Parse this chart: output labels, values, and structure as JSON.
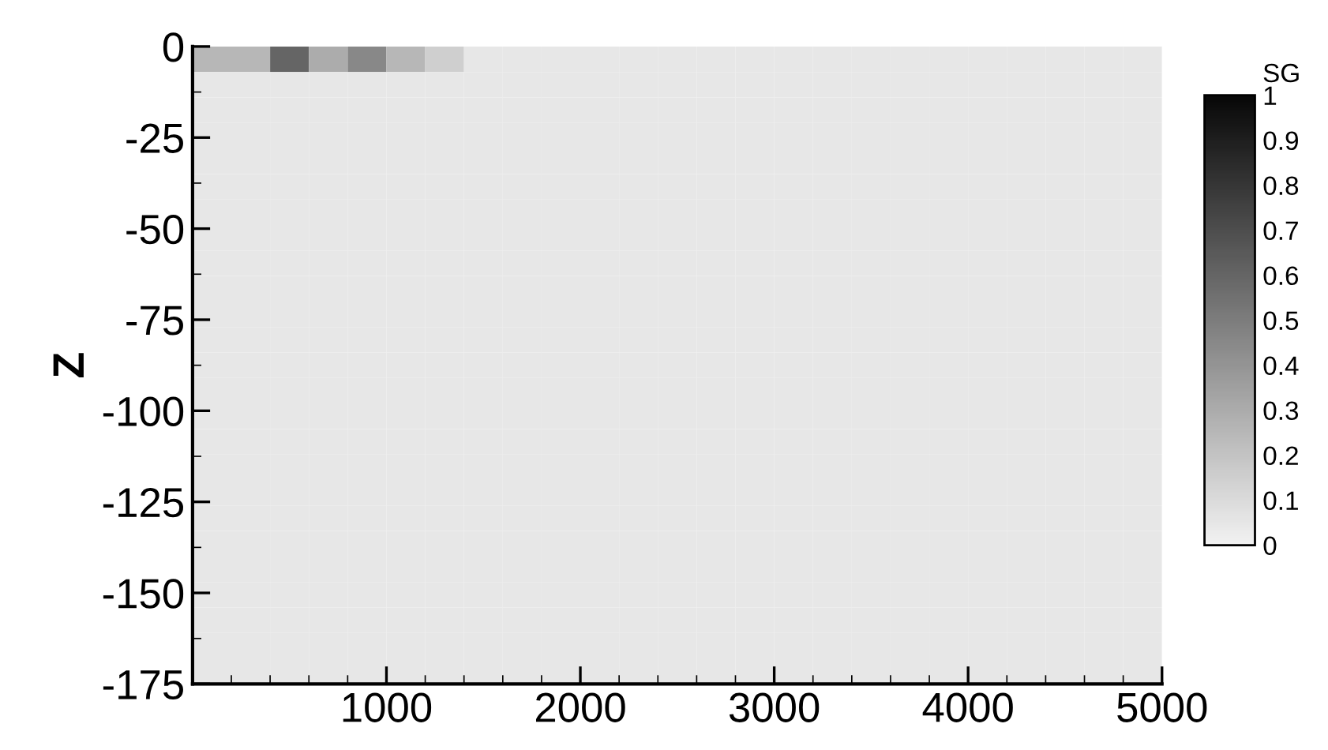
{
  "chart_data": {
    "type": "heatmap",
    "ylabel": "Z",
    "clabel": "SG",
    "cells": [
      [
        0.25,
        0.25,
        0.6,
        0.3,
        0.45,
        0.25,
        0.15,
        0.05,
        0.05,
        0.05,
        0.05,
        0.05,
        0.05,
        0.05,
        0.05,
        0.05,
        0.05,
        0.05,
        0.05,
        0.05,
        0.05,
        0.05,
        0.05,
        0.05,
        0.05
      ],
      [
        0.05,
        0.05,
        0.05,
        0.05,
        0.05,
        0.05,
        0.05,
        0.05,
        0.05,
        0.05,
        0.05,
        0.05,
        0.05,
        0.05,
        0.05,
        0.05,
        0.05,
        0.05,
        0.05,
        0.05,
        0.05,
        0.05,
        0.05,
        0.05,
        0.05
      ],
      [
        0.05,
        0.05,
        0.05,
        0.05,
        0.05,
        0.05,
        0.05,
        0.05,
        0.05,
        0.05,
        0.05,
        0.05,
        0.05,
        0.05,
        0.05,
        0.05,
        0.05,
        0.05,
        0.05,
        0.05,
        0.05,
        0.05,
        0.05,
        0.05,
        0.05
      ],
      [
        0.05,
        0.05,
        0.05,
        0.05,
        0.05,
        0.05,
        0.05,
        0.05,
        0.05,
        0.05,
        0.05,
        0.05,
        0.05,
        0.05,
        0.05,
        0.05,
        0.05,
        0.05,
        0.05,
        0.05,
        0.05,
        0.05,
        0.05,
        0.05,
        0.05
      ],
      [
        0.05,
        0.05,
        0.05,
        0.05,
        0.05,
        0.05,
        0.05,
        0.05,
        0.05,
        0.05,
        0.05,
        0.05,
        0.05,
        0.05,
        0.05,
        0.05,
        0.05,
        0.05,
        0.05,
        0.05,
        0.05,
        0.05,
        0.05,
        0.05,
        0.05
      ],
      [
        0.05,
        0.05,
        0.05,
        0.05,
        0.05,
        0.05,
        0.05,
        0.05,
        0.05,
        0.05,
        0.05,
        0.05,
        0.05,
        0.05,
        0.05,
        0.05,
        0.05,
        0.05,
        0.05,
        0.05,
        0.05,
        0.05,
        0.05,
        0.05,
        0.05
      ],
      [
        0.05,
        0.05,
        0.05,
        0.05,
        0.05,
        0.05,
        0.05,
        0.05,
        0.05,
        0.05,
        0.05,
        0.05,
        0.05,
        0.05,
        0.05,
        0.05,
        0.05,
        0.05,
        0.05,
        0.05,
        0.05,
        0.05,
        0.05,
        0.05,
        0.05
      ],
      [
        0.05,
        0.05,
        0.05,
        0.05,
        0.05,
        0.05,
        0.05,
        0.05,
        0.05,
        0.05,
        0.05,
        0.05,
        0.05,
        0.05,
        0.05,
        0.05,
        0.05,
        0.05,
        0.05,
        0.05,
        0.05,
        0.05,
        0.05,
        0.05,
        0.05
      ],
      [
        0.05,
        0.05,
        0.05,
        0.05,
        0.05,
        0.05,
        0.05,
        0.05,
        0.05,
        0.05,
        0.05,
        0.05,
        0.05,
        0.05,
        0.05,
        0.05,
        0.05,
        0.05,
        0.05,
        0.05,
        0.05,
        0.05,
        0.05,
        0.05,
        0.05
      ],
      [
        0.05,
        0.05,
        0.05,
        0.05,
        0.05,
        0.05,
        0.05,
        0.05,
        0.05,
        0.05,
        0.05,
        0.05,
        0.05,
        0.05,
        0.05,
        0.05,
        0.05,
        0.05,
        0.05,
        0.05,
        0.05,
        0.05,
        0.05,
        0.05,
        0.05
      ],
      [
        0.05,
        0.05,
        0.05,
        0.05,
        0.05,
        0.05,
        0.05,
        0.05,
        0.05,
        0.05,
        0.05,
        0.05,
        0.05,
        0.05,
        0.05,
        0.05,
        0.05,
        0.05,
        0.05,
        0.05,
        0.05,
        0.05,
        0.05,
        0.05,
        0.05
      ],
      [
        0.05,
        0.05,
        0.05,
        0.05,
        0.05,
        0.05,
        0.05,
        0.05,
        0.05,
        0.05,
        0.05,
        0.05,
        0.05,
        0.05,
        0.05,
        0.05,
        0.05,
        0.05,
        0.05,
        0.05,
        0.05,
        0.05,
        0.05,
        0.05,
        0.05
      ],
      [
        0.05,
        0.05,
        0.05,
        0.05,
        0.05,
        0.05,
        0.05,
        0.05,
        0.05,
        0.05,
        0.05,
        0.05,
        0.05,
        0.05,
        0.05,
        0.05,
        0.05,
        0.05,
        0.05,
        0.05,
        0.05,
        0.05,
        0.05,
        0.05,
        0.05
      ],
      [
        0.05,
        0.05,
        0.05,
        0.05,
        0.05,
        0.05,
        0.05,
        0.05,
        0.05,
        0.05,
        0.05,
        0.05,
        0.05,
        0.05,
        0.05,
        0.05,
        0.05,
        0.05,
        0.05,
        0.05,
        0.05,
        0.05,
        0.05,
        0.05,
        0.05
      ],
      [
        0.05,
        0.05,
        0.05,
        0.05,
        0.05,
        0.05,
        0.05,
        0.05,
        0.05,
        0.05,
        0.05,
        0.05,
        0.05,
        0.05,
        0.05,
        0.05,
        0.05,
        0.05,
        0.05,
        0.05,
        0.05,
        0.05,
        0.05,
        0.05,
        0.05
      ],
      [
        0.05,
        0.05,
        0.05,
        0.05,
        0.05,
        0.05,
        0.05,
        0.05,
        0.05,
        0.05,
        0.05,
        0.05,
        0.05,
        0.05,
        0.05,
        0.05,
        0.05,
        0.05,
        0.05,
        0.05,
        0.05,
        0.05,
        0.05,
        0.05,
        0.05
      ],
      [
        0.05,
        0.05,
        0.05,
        0.05,
        0.05,
        0.05,
        0.05,
        0.05,
        0.05,
        0.05,
        0.05,
        0.05,
        0.05,
        0.05,
        0.05,
        0.05,
        0.05,
        0.05,
        0.05,
        0.05,
        0.05,
        0.05,
        0.05,
        0.05,
        0.05
      ],
      [
        0.05,
        0.05,
        0.05,
        0.05,
        0.05,
        0.05,
        0.05,
        0.05,
        0.05,
        0.05,
        0.05,
        0.05,
        0.05,
        0.05,
        0.05,
        0.05,
        0.05,
        0.05,
        0.05,
        0.05,
        0.05,
        0.05,
        0.05,
        0.05,
        0.05
      ],
      [
        0.05,
        0.05,
        0.05,
        0.05,
        0.05,
        0.05,
        0.05,
        0.05,
        0.05,
        0.05,
        0.05,
        0.05,
        0.05,
        0.05,
        0.05,
        0.05,
        0.05,
        0.05,
        0.05,
        0.05,
        0.05,
        0.05,
        0.05,
        0.05,
        0.05
      ],
      [
        0.05,
        0.05,
        0.05,
        0.05,
        0.05,
        0.05,
        0.05,
        0.05,
        0.05,
        0.05,
        0.05,
        0.05,
        0.05,
        0.05,
        0.05,
        0.05,
        0.05,
        0.05,
        0.05,
        0.05,
        0.05,
        0.05,
        0.05,
        0.05,
        0.05
      ],
      [
        0.05,
        0.05,
        0.05,
        0.05,
        0.05,
        0.05,
        0.05,
        0.05,
        0.05,
        0.05,
        0.05,
        0.05,
        0.05,
        0.05,
        0.05,
        0.05,
        0.05,
        0.05,
        0.05,
        0.05,
        0.05,
        0.05,
        0.05,
        0.05,
        0.05
      ],
      [
        0.05,
        0.05,
        0.05,
        0.05,
        0.05,
        0.05,
        0.05,
        0.05,
        0.05,
        0.05,
        0.05,
        0.05,
        0.05,
        0.05,
        0.05,
        0.05,
        0.05,
        0.05,
        0.05,
        0.05,
        0.05,
        0.05,
        0.05,
        0.05,
        0.05
      ],
      [
        0.05,
        0.05,
        0.05,
        0.05,
        0.05,
        0.05,
        0.05,
        0.05,
        0.05,
        0.05,
        0.05,
        0.05,
        0.05,
        0.05,
        0.05,
        0.05,
        0.05,
        0.05,
        0.05,
        0.05,
        0.05,
        0.05,
        0.05,
        0.05,
        0.05
      ],
      [
        0.05,
        0.05,
        0.05,
        0.05,
        0.05,
        0.05,
        0.05,
        0.05,
        0.05,
        0.05,
        0.05,
        0.05,
        0.05,
        0.05,
        0.05,
        0.05,
        0.05,
        0.05,
        0.05,
        0.05,
        0.05,
        0.05,
        0.05,
        0.05,
        0.05
      ],
      [
        0.05,
        0.05,
        0.05,
        0.05,
        0.05,
        0.05,
        0.05,
        0.05,
        0.05,
        0.05,
        0.05,
        0.05,
        0.05,
        0.05,
        0.05,
        0.05,
        0.05,
        0.05,
        0.05,
        0.05,
        0.05,
        0.05,
        0.05,
        0.05,
        0.05
      ]
    ],
    "xlim": [
      0,
      5000
    ],
    "xticks": [
      1000,
      2000,
      3000,
      4000,
      5000
    ],
    "ylim": [
      -175,
      0
    ],
    "yticks": [
      0,
      -25,
      -50,
      -75,
      -100,
      -125,
      -150,
      -175
    ],
    "clim": [
      0,
      1
    ],
    "cticks": [
      0,
      0.1,
      0.2,
      0.3,
      0.4,
      0.5,
      0.6,
      0.7,
      0.8,
      0.9,
      1
    ],
    "grid": false
  }
}
